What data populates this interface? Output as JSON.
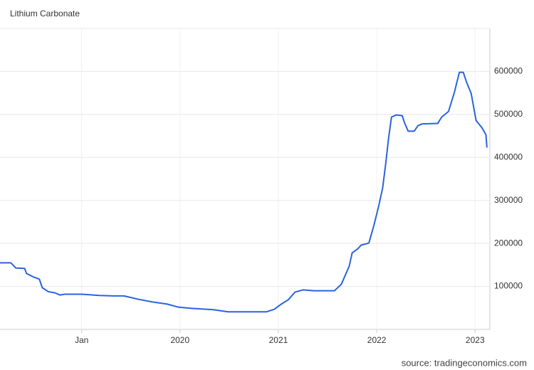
{
  "chart_data": {
    "type": "line",
    "title": "Lithium Carbonate",
    "source": "source: tradingeconomics.com",
    "x": [
      2018.17,
      2018.28,
      2018.33,
      2018.42,
      2018.44,
      2018.51,
      2018.57,
      2018.6,
      2018.66,
      2018.73,
      2018.78,
      2018.83,
      2019.0,
      2019.18,
      2019.33,
      2019.43,
      2019.58,
      2019.72,
      2019.87,
      2019.98,
      2020.12,
      2020.34,
      2020.49,
      2020.88,
      2020.96,
      2021.03,
      2021.1,
      2021.17,
      2021.25,
      2021.36,
      2021.57,
      2021.64,
      2021.72,
      2021.75,
      2021.81,
      2021.84,
      2021.92,
      2021.97,
      2022.02,
      2022.06,
      2022.09,
      2022.12,
      2022.15,
      2022.2,
      2022.26,
      2022.28,
      2022.32,
      2022.38,
      2022.42,
      2022.46,
      2022.62,
      2022.66,
      2022.73,
      2022.79,
      2022.84,
      2022.88,
      2022.91,
      2022.96,
      2023.01,
      2023.07,
      2023.11,
      2023.12
    ],
    "series": [
      {
        "name": "Lithium Carbonate",
        "color": "#2a63de",
        "values": [
          155000,
          155000,
          143000,
          142000,
          130000,
          122000,
          117000,
          97000,
          88000,
          85000,
          80000,
          82000,
          82000,
          79000,
          78000,
          78000,
          70000,
          64000,
          59000,
          52000,
          49000,
          46000,
          41000,
          41000,
          47000,
          59000,
          69000,
          87000,
          92000,
          90000,
          90000,
          105000,
          147000,
          178000,
          188000,
          196000,
          201000,
          241000,
          287000,
          329000,
          383000,
          444000,
          494000,
          499000,
          497000,
          482000,
          461000,
          461000,
          474000,
          478000,
          479000,
          494000,
          507000,
          552000,
          598000,
          598000,
          577000,
          549000,
          486000,
          469000,
          453000,
          423000
        ]
      }
    ],
    "xlim": [
      2018.17,
      2023.15
    ],
    "xticks": [
      {
        "value": 2019,
        "label": "Jan"
      },
      2020,
      2021,
      2022,
      2023
    ],
    "ylim": [
      0,
      700000
    ],
    "yticks": [
      100000,
      200000,
      300000,
      400000,
      500000,
      600000
    ],
    "grid": true
  }
}
